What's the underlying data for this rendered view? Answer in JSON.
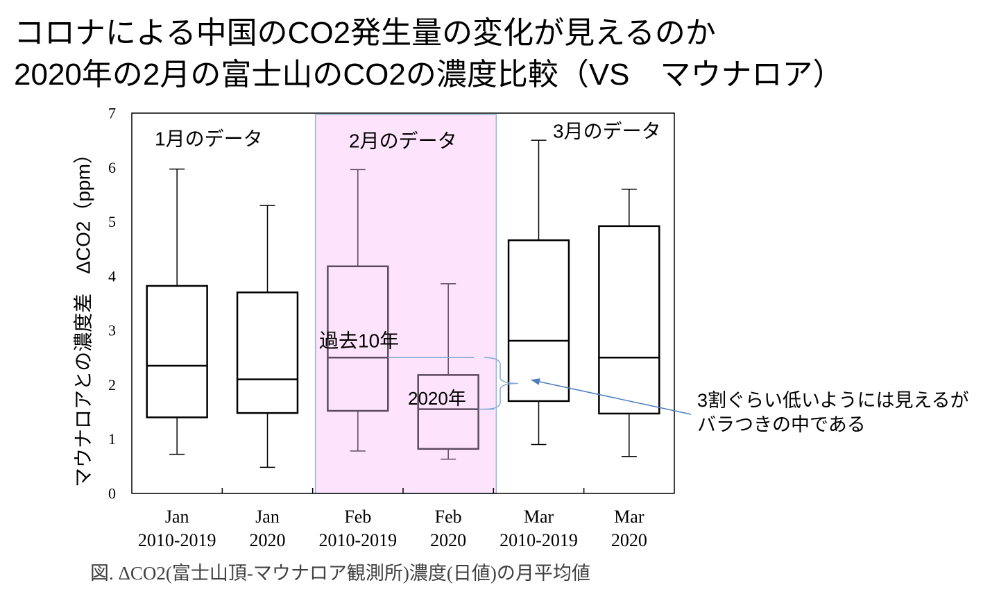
{
  "slide": {
    "title_line1": "コロナによる中国のCO2発生量の変化が見えるのか",
    "title_line2": "2020年の2月の富士山のCO2の濃度比較（VS　マウナロア）"
  },
  "chart_data": {
    "type": "box",
    "ylabel": "マウナロアとの濃度差　ΔCO2（ppm）",
    "ylim": [
      0,
      7
    ],
    "yticks": [
      0,
      1,
      2,
      3,
      4,
      5,
      6,
      7
    ],
    "grid": false,
    "categories": [
      {
        "month": "Jan",
        "period": "2010-2019"
      },
      {
        "month": "Jan",
        "period": "2020"
      },
      {
        "month": "Feb",
        "period": "2010-2019"
      },
      {
        "month": "Feb",
        "period": "2020"
      },
      {
        "month": "Mar",
        "period": "2010-2019"
      },
      {
        "month": "Mar",
        "period": "2020"
      }
    ],
    "boxes": [
      {
        "whisker_high": 5.97,
        "q3": 3.82,
        "median": 2.35,
        "q1": 1.4,
        "whisker_low": 0.72,
        "highlighted": false
      },
      {
        "whisker_high": 5.3,
        "q3": 3.7,
        "median": 2.1,
        "q1": 1.48,
        "whisker_low": 0.48,
        "highlighted": false
      },
      {
        "whisker_high": 5.96,
        "q3": 4.18,
        "median": 2.5,
        "q1": 1.52,
        "whisker_low": 0.78,
        "highlighted": true
      },
      {
        "whisker_high": 3.86,
        "q3": 2.18,
        "median": 1.55,
        "q1": 0.82,
        "whisker_low": 0.63,
        "highlighted": true
      },
      {
        "whisker_high": 6.5,
        "q3": 4.66,
        "median": 2.81,
        "q1": 1.7,
        "whisker_low": 0.9,
        "highlighted": false
      },
      {
        "whisker_high": 5.6,
        "q3": 4.92,
        "median": 2.5,
        "q1": 1.47,
        "whisker_low": 0.68,
        "highlighted": false
      }
    ],
    "group_labels": [
      "1月のデータ",
      "2月のデータ",
      "3月のデータ"
    ],
    "annotations": {
      "past": "過去10年",
      "recent": "2020年",
      "note_line1": "3割ぐらい低いようには見えるが",
      "note_line2": "バラつきの中である"
    },
    "caption": "図. ΔCO2(富士山頂-マウナロア観測所)濃度(日値)の月平均値",
    "colors": {
      "box": "#000000",
      "highlight_fill": "#fde4fc",
      "highlight_border": "#94b6d8",
      "highlight_box": "#5c4a5e",
      "annotation_line": "#7fa9d4",
      "arrow": "#4a7ebb"
    }
  }
}
